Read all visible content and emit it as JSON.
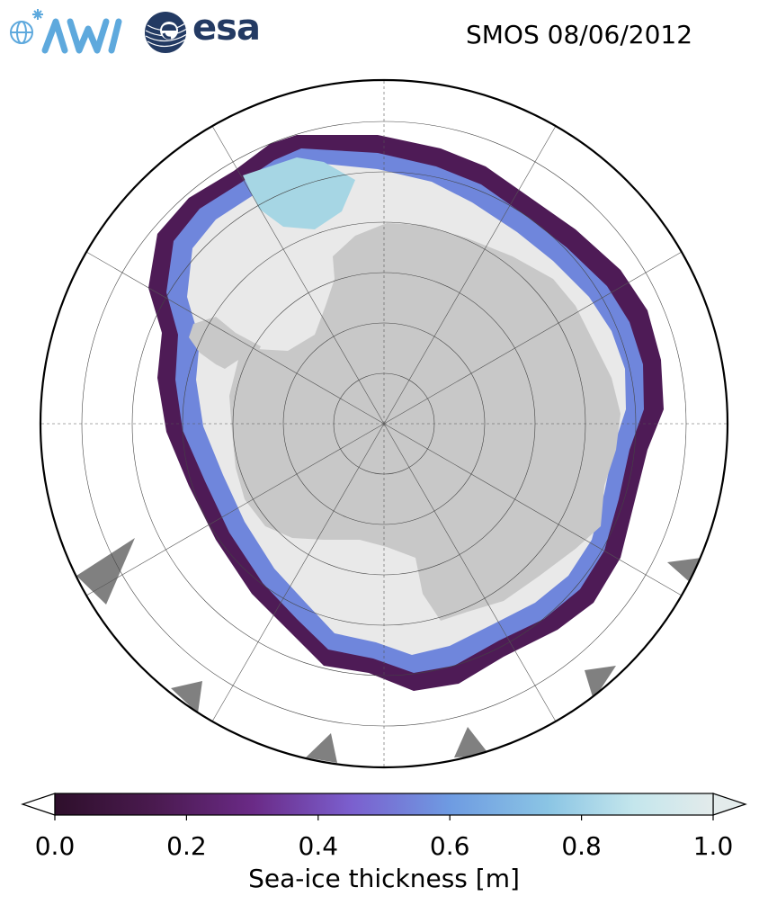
{
  "header": {
    "logos": [
      {
        "name": "awi-logo",
        "text": "AWI",
        "color": "#5ea9dd"
      },
      {
        "name": "esa-logo",
        "text": "esa",
        "color": "#233a63"
      }
    ],
    "title": "SMOS 08/06/2012"
  },
  "map": {
    "projection": "south-polar-stereographic",
    "land_color": "#c8c8c8",
    "no_data_color": "#808080",
    "ocean_color": "#ffffff"
  },
  "colorbar": {
    "label": "Sea-ice thickness [m]",
    "range": [
      0.0,
      1.0
    ],
    "extend": "both",
    "ticks": [
      "0.0",
      "0.2",
      "0.4",
      "0.6",
      "0.8",
      "1.0"
    ],
    "colors": [
      "#2e0f2b",
      "#4e1b56",
      "#6e2f8e",
      "#7b5fce",
      "#6e9be2",
      "#9fd0e4",
      "#d2ecee",
      "#ececec"
    ]
  }
}
